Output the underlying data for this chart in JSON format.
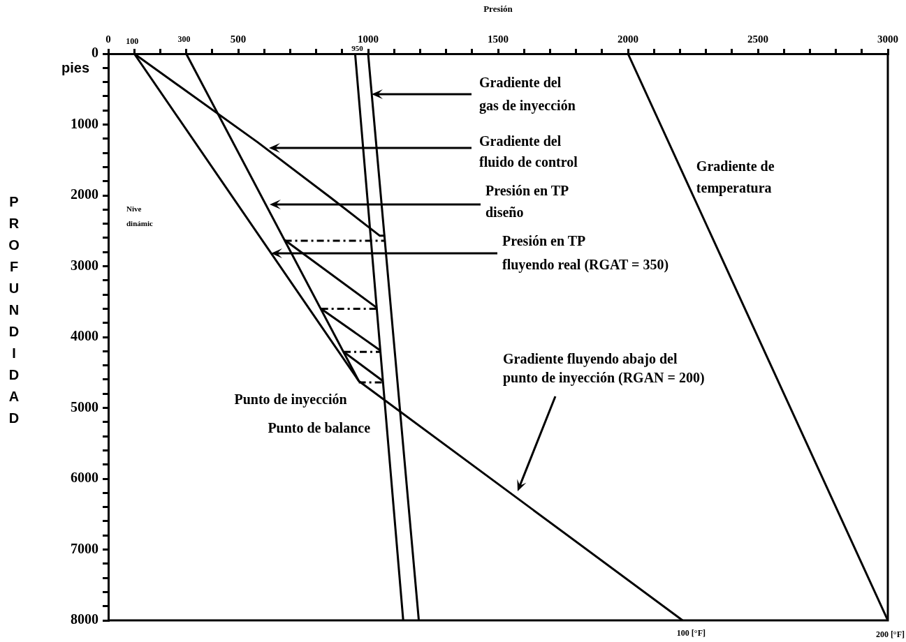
{
  "chart_data": {
    "type": "line",
    "xlabel": "Presión",
    "ylabel": "PROFUNDIDAD",
    "grid": false,
    "legend": false,
    "xlim": [
      0,
      3000
    ],
    "ylim": [
      8000,
      0
    ],
    "xticks": [
      0,
      {
        "value": 100,
        "label": null
      },
      {
        "value": 200,
        "label": null
      },
      {
        "value": 300,
        "label": null
      },
      {
        "value": 400,
        "label": null
      },
      500,
      {
        "value": 600,
        "label": null
      },
      {
        "value": 700,
        "label": null
      },
      {
        "value": 800,
        "label": null
      },
      {
        "value": 900,
        "label": null
      },
      1000,
      {
        "value": 1100,
        "label": null
      },
      {
        "value": 1200,
        "label": null
      },
      {
        "value": 1300,
        "label": null
      },
      {
        "value": 1400,
        "label": null
      },
      1500,
      {
        "value": 1600,
        "label": null
      },
      {
        "value": 1700,
        "label": null
      },
      {
        "value": 1800,
        "label": null
      },
      {
        "value": 1900,
        "label": null
      },
      2000,
      {
        "value": 2100,
        "label": null
      },
      {
        "value": 2200,
        "label": null
      },
      {
        "value": 2300,
        "label": null
      },
      {
        "value": 2400,
        "label": null
      },
      2500,
      {
        "value": 2600,
        "label": null
      },
      {
        "value": 2700,
        "label": null
      },
      {
        "value": 2800,
        "label": null
      },
      {
        "value": 2900,
        "label": null
      },
      3000
    ],
    "yticks": [
      0,
      {
        "value": 200,
        "label": null
      },
      {
        "value": 400,
        "label": null
      },
      {
        "value": 600,
        "label": null
      },
      {
        "value": 800,
        "label": null
      },
      1000,
      {
        "value": 1200,
        "label": null
      },
      {
        "value": 1400,
        "label": null
      },
      {
        "value": 1600,
        "label": null
      },
      {
        "value": 1800,
        "label": null
      },
      2000,
      {
        "value": 2200,
        "label": null
      },
      {
        "value": 2400,
        "label": null
      },
      {
        "value": 2600,
        "label": null
      },
      {
        "value": 2800,
        "label": null
      },
      3000,
      {
        "value": 3200,
        "label": null
      },
      {
        "value": 3400,
        "label": null
      },
      {
        "value": 3600,
        "label": null
      },
      {
        "value": 3800,
        "label": null
      },
      4000,
      {
        "value": 4200,
        "label": null
      },
      {
        "value": 4400,
        "label": null
      },
      {
        "value": 4600,
        "label": null
      },
      {
        "value": 4800,
        "label": null
      },
      5000,
      {
        "value": 5200,
        "label": null
      },
      {
        "value": 5400,
        "label": null
      },
      {
        "value": 5600,
        "label": null
      },
      {
        "value": 5800,
        "label": null
      },
      6000,
      {
        "value": 6200,
        "label": null
      },
      {
        "value": 6400,
        "label": null
      },
      {
        "value": 6600,
        "label": null
      },
      {
        "value": 6800,
        "label": null
      },
      7000,
      {
        "value": 7200,
        "label": null
      },
      {
        "value": 7400,
        "label": null
      },
      {
        "value": 7600,
        "label": null
      },
      {
        "value": 7800,
        "label": null
      },
      8000
    ],
    "series": [
      {
        "color": "#000000",
        "line_style": "solid",
        "x": [
          2000,
          3000
        ],
        "values": [
          0,
          8000
        ]
      },
      {
        "color": "#000000",
        "line_style": "solid",
        "x": [
          950,
          1135
        ],
        "values": [
          0,
          8000
        ]
      },
      {
        "color": "#000000",
        "line_style": "solid",
        "x": [
          1000,
          1195
        ],
        "values": [
          0,
          8000
        ]
      },
      {
        "color": "#000000",
        "line_style": "solid",
        "x": [
          100,
          575,
          855,
          1045,
          1065
        ],
        "values": [
          0,
          1250,
          2030,
          2570,
          2570
        ]
      },
      {
        "color": "#000000",
        "line_style": "solid",
        "x": [
          300,
          964
        ],
        "values": [
          0,
          4620
        ]
      },
      {
        "color": "#000000",
        "line_style": "solid",
        "x": [
          100,
          964,
          2210
        ],
        "values": [
          0,
          4620,
          8000
        ]
      },
      {
        "color": "#000000",
        "line_style": "solid",
        "x": [
          679,
          1031
        ],
        "values": [
          2630,
          3580
        ]
      },
      {
        "color": "#000000",
        "line_style": "solid",
        "x": [
          819,
          1047
        ],
        "values": [
          3600,
          4190
        ]
      },
      {
        "color": "#000000",
        "line_style": "solid",
        "x": [
          906,
          1057
        ],
        "values": [
          4210,
          4620
        ]
      },
      {
        "color": "#000000",
        "line_style": "dashed",
        "x": [
          679,
          1067
        ],
        "values": [
          2640,
          2640
        ]
      },
      {
        "color": "#000000",
        "line_style": "dashed",
        "x": [
          819,
          1031
        ],
        "values": [
          3600,
          3600
        ]
      },
      {
        "color": "#000000",
        "line_style": "dashed",
        "x": [
          906,
          1047
        ],
        "values": [
          4210,
          4210
        ]
      },
      {
        "color": "#000000",
        "line_style": "dashed",
        "x": [
          964,
          1057
        ],
        "values": [
          4640,
          4640
        ]
      }
    ],
    "annotations": [
      "Gradiente del\ngas de inyección",
      "Gradiente del\nfluido de control",
      "Presión en TP\ndiseño",
      "Presión en TP\nfluyendo real (RGAT = 350)",
      "Gradiente fluyendo abajo del\npunto de inyección (RGAN = 200)",
      {
        "text": "Punto de inyección",
        "x": 964,
        "y": 4620
      },
      {
        "text": "Punto de balance",
        "x": 1062,
        "y": 4890
      },
      {
        "text": "Gradiente de\ntemperatura",
        "x": 2212,
        "y": 1700
      },
      "Nive\ndinámic",
      "pies",
      {
        "text": "100",
        "x": 100,
        "y": 0
      },
      {
        "text": "300",
        "x": 300,
        "y": 0
      },
      {
        "text": "950",
        "x": 950,
        "y": 0
      },
      {
        "text": "100 [°F]",
        "x": 2200,
        "y": 8000
      },
      {
        "text": "200 [°F]",
        "x": 3000,
        "y": 8000
      }
    ]
  }
}
